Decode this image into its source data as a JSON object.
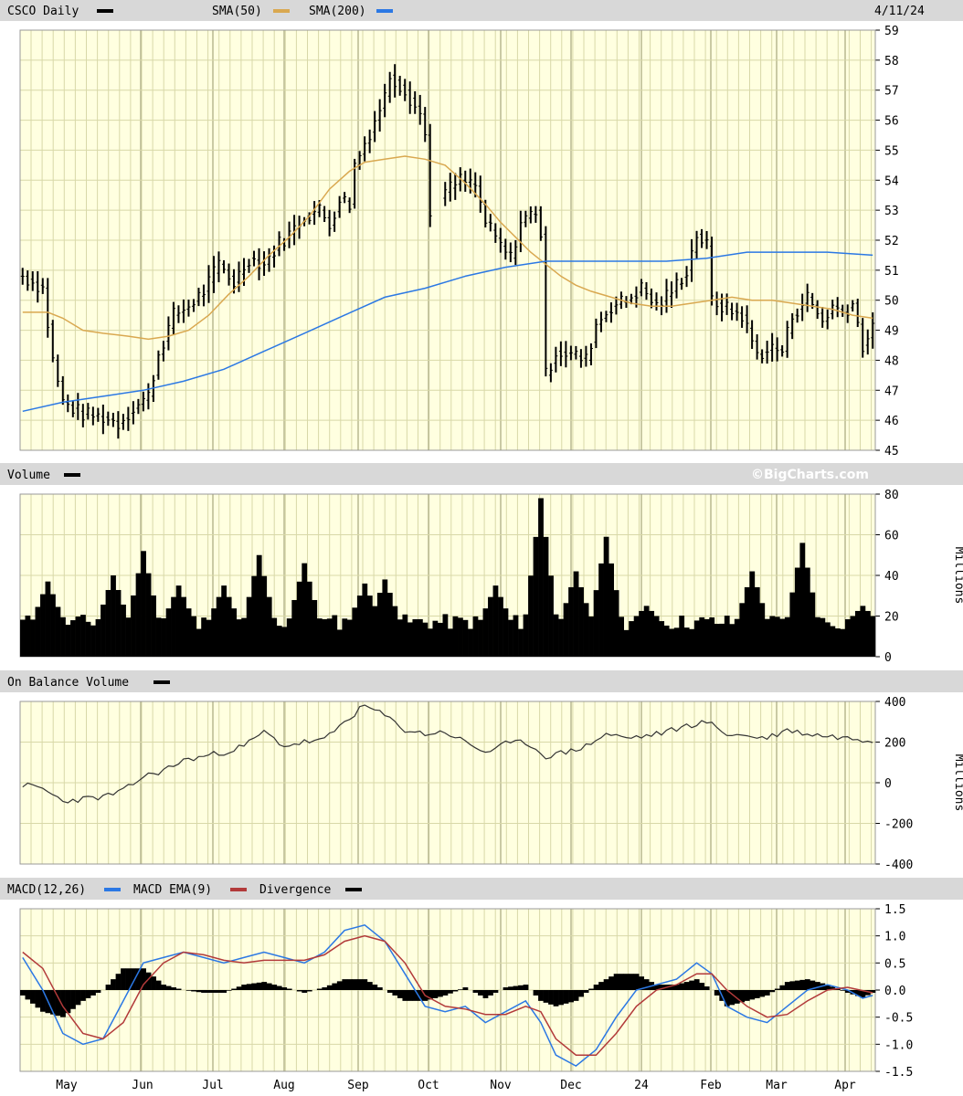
{
  "header": {
    "ticker_label": "CSCO Daily",
    "date": "4/11/24",
    "sma50_label": "SMA(50)",
    "sma200_label": "SMA(200)",
    "brand": "©BigCharts.com"
  },
  "colors": {
    "panel_bg": "#ffffe0",
    "grid": "#d8d8a8",
    "header_bar": "#d8d8d8",
    "price_bars": "#000000",
    "sma50": "#d9a850",
    "sma200": "#2b78e4",
    "macd": "#2b78e4",
    "macd_ema": "#b23a3a",
    "divergence": "#000000",
    "obv": "#333333"
  },
  "chart_data": [
    {
      "type": "ohlc",
      "title": "CSCO Daily",
      "ylim": [
        45,
        59
      ],
      "yticks": [
        45,
        46,
        47,
        48,
        49,
        50,
        51,
        52,
        53,
        54,
        55,
        56,
        57,
        58,
        59
      ],
      "xticks": [
        "May",
        "Jun",
        "Jul",
        "Aug",
        "Sep",
        "Oct",
        "Nov",
        "Dec",
        "24",
        "Feb",
        "Mar",
        "Apr"
      ],
      "price_path": [
        [
          0,
          50.8
        ],
        [
          4,
          50.4
        ],
        [
          6,
          48.0
        ],
        [
          8,
          46.6
        ],
        [
          12,
          46.2
        ],
        [
          16,
          46.1
        ],
        [
          19,
          45.9
        ],
        [
          22,
          46.4
        ],
        [
          25,
          46.8
        ],
        [
          27,
          48.2
        ],
        [
          30,
          49.5
        ],
        [
          33,
          49.8
        ],
        [
          36,
          50.3
        ],
        [
          39,
          51.2
        ],
        [
          42,
          50.6
        ],
        [
          45,
          51.4
        ],
        [
          48,
          51.2
        ],
        [
          51,
          51.9
        ],
        [
          53,
          52.2
        ],
        [
          56,
          52.8
        ],
        [
          59,
          53.0
        ],
        [
          61,
          52.5
        ],
        [
          63,
          53.4
        ],
        [
          65,
          53.2
        ],
        [
          66,
          54.5
        ],
        [
          69,
          55.6
        ],
        [
          72,
          56.8
        ],
        [
          73,
          57.5
        ],
        [
          76,
          57.0
        ],
        [
          79,
          56.2
        ],
        [
          80,
          55.5
        ],
        [
          81,
          53.0
        ],
        [
          84,
          53.6
        ],
        [
          87,
          54.0
        ],
        [
          90,
          53.8
        ],
        [
          92,
          52.6
        ],
        [
          95,
          51.8
        ],
        [
          97,
          51.4
        ],
        [
          99,
          52.6
        ],
        [
          102,
          53.0
        ],
        [
          103,
          52.2
        ],
        [
          104,
          47.5
        ],
        [
          106,
          48.3
        ],
        [
          109,
          48.2
        ],
        [
          112,
          48.0
        ],
        [
          114,
          49.2
        ],
        [
          117,
          49.8
        ],
        [
          120,
          50.0
        ],
        [
          123,
          50.4
        ],
        [
          126,
          49.8
        ],
        [
          129,
          50.3
        ],
        [
          132,
          51.0
        ],
        [
          134,
          52.2
        ],
        [
          136,
          51.8
        ],
        [
          137,
          50.0
        ],
        [
          140,
          49.7
        ],
        [
          143,
          49.5
        ],
        [
          146,
          48.2
        ],
        [
          149,
          48.4
        ],
        [
          151,
          48.3
        ],
        [
          153,
          49.5
        ],
        [
          156,
          50.1
        ],
        [
          159,
          49.3
        ],
        [
          161,
          49.8
        ],
        [
          163,
          49.6
        ],
        [
          165,
          49.9
        ],
        [
          167,
          48.5
        ],
        [
          169,
          49.0
        ]
      ],
      "gap_days": [
        [
          82,
          83
        ]
      ],
      "sma50": [
        [
          0,
          49.6
        ],
        [
          5,
          49.6
        ],
        [
          8,
          49.4
        ],
        [
          12,
          49.0
        ],
        [
          16,
          48.9
        ],
        [
          21,
          48.8
        ],
        [
          25,
          48.7
        ],
        [
          29,
          48.8
        ],
        [
          33,
          49.0
        ],
        [
          37,
          49.5
        ],
        [
          41,
          50.2
        ],
        [
          45,
          50.8
        ],
        [
          49,
          51.5
        ],
        [
          53,
          52.1
        ],
        [
          57,
          52.8
        ],
        [
          61,
          53.7
        ],
        [
          65,
          54.3
        ],
        [
          68,
          54.6
        ],
        [
          72,
          54.7
        ],
        [
          76,
          54.8
        ],
        [
          80,
          54.7
        ],
        [
          84,
          54.5
        ],
        [
          88,
          53.9
        ],
        [
          92,
          53.2
        ],
        [
          95,
          52.6
        ],
        [
          98,
          52.1
        ],
        [
          101,
          51.6
        ],
        [
          104,
          51.2
        ],
        [
          107,
          50.8
        ],
        [
          110,
          50.5
        ],
        [
          113,
          50.3
        ],
        [
          117,
          50.1
        ],
        [
          121,
          49.9
        ],
        [
          125,
          49.8
        ],
        [
          129,
          49.8
        ],
        [
          133,
          49.9
        ],
        [
          137,
          50.0
        ],
        [
          141,
          50.1
        ],
        [
          145,
          50.0
        ],
        [
          149,
          50.0
        ],
        [
          153,
          49.9
        ],
        [
          157,
          49.8
        ],
        [
          161,
          49.7
        ],
        [
          165,
          49.5
        ],
        [
          169,
          49.4
        ]
      ],
      "sma200": [
        [
          0,
          46.3
        ],
        [
          8,
          46.6
        ],
        [
          16,
          46.8
        ],
        [
          24,
          47.0
        ],
        [
          32,
          47.3
        ],
        [
          40,
          47.7
        ],
        [
          48,
          48.3
        ],
        [
          56,
          48.9
        ],
        [
          64,
          49.5
        ],
        [
          72,
          50.1
        ],
        [
          80,
          50.4
        ],
        [
          88,
          50.8
        ],
        [
          96,
          51.1
        ],
        [
          104,
          51.3
        ],
        [
          112,
          51.3
        ],
        [
          120,
          51.3
        ],
        [
          128,
          51.3
        ],
        [
          136,
          51.4
        ],
        [
          144,
          51.6
        ],
        [
          152,
          51.6
        ],
        [
          160,
          51.6
        ],
        [
          169,
          51.5
        ]
      ]
    },
    {
      "type": "bar",
      "title": "Volume",
      "ylabel": "Millions",
      "ylim": [
        0,
        80
      ],
      "yticks": [
        0,
        20,
        40,
        60,
        80
      ],
      "spikes": [
        [
          5,
          37
        ],
        [
          18,
          40
        ],
        [
          24,
          52
        ],
        [
          31,
          35
        ],
        [
          40,
          35
        ],
        [
          47,
          50
        ],
        [
          56,
          46
        ],
        [
          68,
          36
        ],
        [
          72,
          38
        ],
        [
          94,
          35
        ],
        [
          103,
          78
        ],
        [
          110,
          42
        ],
        [
          116,
          59
        ],
        [
          124,
          25
        ],
        [
          145,
          42
        ],
        [
          155,
          56
        ],
        [
          167,
          25
        ]
      ],
      "baseline": 17
    },
    {
      "type": "line",
      "title": "On Balance Volume",
      "ylabel": "Millions",
      "ylim": [
        -400,
        400
      ],
      "yticks": [
        -400,
        -200,
        0,
        200,
        400
      ],
      "values": [
        [
          0,
          -10
        ],
        [
          4,
          -30
        ],
        [
          8,
          -90
        ],
        [
          12,
          -80
        ],
        [
          16,
          -70
        ],
        [
          20,
          -40
        ],
        [
          24,
          30
        ],
        [
          28,
          60
        ],
        [
          32,
          110
        ],
        [
          36,
          130
        ],
        [
          40,
          150
        ],
        [
          44,
          180
        ],
        [
          48,
          250
        ],
        [
          52,
          180
        ],
        [
          56,
          200
        ],
        [
          60,
          210
        ],
        [
          64,
          300
        ],
        [
          68,
          380
        ],
        [
          72,
          330
        ],
        [
          76,
          260
        ],
        [
          80,
          240
        ],
        [
          84,
          250
        ],
        [
          88,
          200
        ],
        [
          92,
          150
        ],
        [
          96,
          190
        ],
        [
          100,
          200
        ],
        [
          104,
          130
        ],
        [
          108,
          150
        ],
        [
          112,
          180
        ],
        [
          116,
          240
        ],
        [
          120,
          220
        ],
        [
          124,
          230
        ],
        [
          128,
          250
        ],
        [
          132,
          280
        ],
        [
          136,
          300
        ],
        [
          140,
          240
        ],
        [
          144,
          230
        ],
        [
          148,
          220
        ],
        [
          152,
          260
        ],
        [
          156,
          240
        ],
        [
          160,
          230
        ],
        [
          164,
          220
        ],
        [
          169,
          210
        ]
      ]
    },
    {
      "type": "line",
      "title": "MACD(12,26)",
      "series_labels": [
        "MACD(12,26)",
        "MACD EMA(9)",
        "Divergence"
      ],
      "ylim": [
        -1.5,
        1.5
      ],
      "yticks": [
        -1.5,
        -1.0,
        -0.5,
        0.0,
        0.5,
        1.0,
        1.5
      ],
      "macd": [
        [
          0,
          0.6
        ],
        [
          4,
          0.0
        ],
        [
          8,
          -0.8
        ],
        [
          12,
          -1.0
        ],
        [
          16,
          -0.9
        ],
        [
          20,
          -0.2
        ],
        [
          24,
          0.5
        ],
        [
          28,
          0.6
        ],
        [
          32,
          0.7
        ],
        [
          36,
          0.6
        ],
        [
          40,
          0.5
        ],
        [
          44,
          0.6
        ],
        [
          48,
          0.7
        ],
        [
          52,
          0.6
        ],
        [
          56,
          0.5
        ],
        [
          60,
          0.7
        ],
        [
          64,
          1.1
        ],
        [
          68,
          1.2
        ],
        [
          72,
          0.9
        ],
        [
          76,
          0.3
        ],
        [
          80,
          -0.3
        ],
        [
          84,
          -0.4
        ],
        [
          88,
          -0.3
        ],
        [
          92,
          -0.6
        ],
        [
          96,
          -0.4
        ],
        [
          100,
          -0.2
        ],
        [
          103,
          -0.6
        ],
        [
          106,
          -1.2
        ],
        [
          110,
          -1.4
        ],
        [
          114,
          -1.1
        ],
        [
          118,
          -0.5
        ],
        [
          122,
          0.0
        ],
        [
          126,
          0.1
        ],
        [
          130,
          0.2
        ],
        [
          134,
          0.5
        ],
        [
          137,
          0.3
        ],
        [
          140,
          -0.3
        ],
        [
          144,
          -0.5
        ],
        [
          148,
          -0.6
        ],
        [
          152,
          -0.3
        ],
        [
          156,
          0.0
        ],
        [
          160,
          0.1
        ],
        [
          164,
          0.0
        ],
        [
          167,
          -0.15
        ],
        [
          169,
          -0.1
        ]
      ],
      "ema": [
        [
          0,
          0.7
        ],
        [
          4,
          0.4
        ],
        [
          8,
          -0.3
        ],
        [
          12,
          -0.8
        ],
        [
          16,
          -0.9
        ],
        [
          20,
          -0.6
        ],
        [
          24,
          0.1
        ],
        [
          28,
          0.5
        ],
        [
          32,
          0.7
        ],
        [
          36,
          0.65
        ],
        [
          40,
          0.55
        ],
        [
          44,
          0.5
        ],
        [
          48,
          0.55
        ],
        [
          52,
          0.55
        ],
        [
          56,
          0.55
        ],
        [
          60,
          0.65
        ],
        [
          64,
          0.9
        ],
        [
          68,
          1.0
        ],
        [
          72,
          0.9
        ],
        [
          76,
          0.5
        ],
        [
          80,
          -0.1
        ],
        [
          84,
          -0.3
        ],
        [
          88,
          -0.35
        ],
        [
          92,
          -0.45
        ],
        [
          96,
          -0.45
        ],
        [
          100,
          -0.3
        ],
        [
          103,
          -0.4
        ],
        [
          106,
          -0.9
        ],
        [
          110,
          -1.2
        ],
        [
          114,
          -1.2
        ],
        [
          118,
          -0.8
        ],
        [
          122,
          -0.3
        ],
        [
          126,
          0.0
        ],
        [
          130,
          0.1
        ],
        [
          134,
          0.3
        ],
        [
          137,
          0.3
        ],
        [
          140,
          0.0
        ],
        [
          144,
          -0.3
        ],
        [
          148,
          -0.5
        ],
        [
          152,
          -0.45
        ],
        [
          156,
          -0.2
        ],
        [
          160,
          0.0
        ],
        [
          164,
          0.05
        ],
        [
          169,
          -0.05
        ]
      ]
    }
  ]
}
